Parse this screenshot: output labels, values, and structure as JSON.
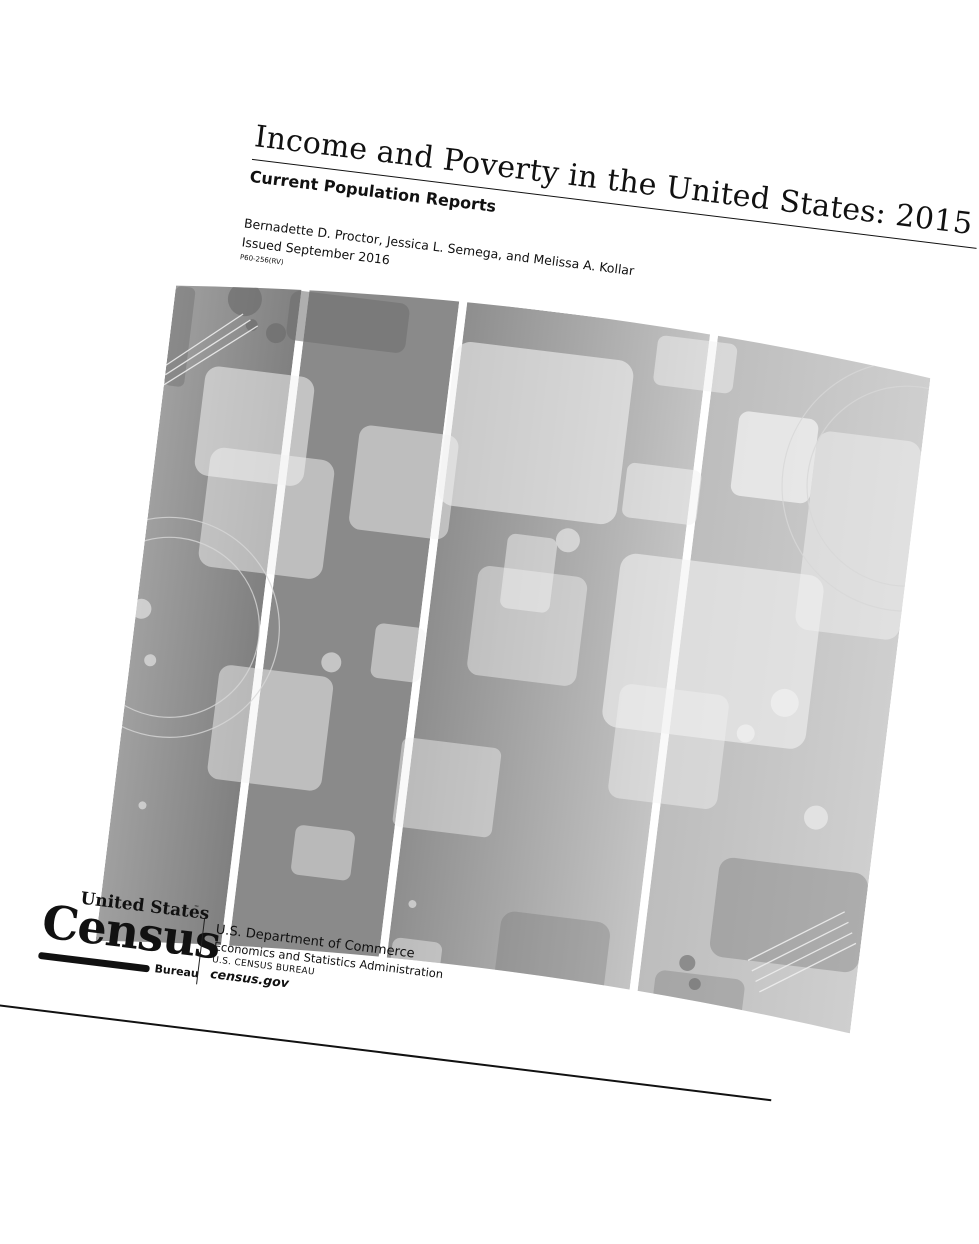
{
  "report": {
    "title": "Income and Poverty in the United States: 2015",
    "subtitle": "Current Population Reports",
    "authors": "Bernadette D. Proctor, Jessica L. Semega, and Melissa A. Kollar",
    "issued": "Issued September 2016",
    "report_id": "P60-256(RV)"
  },
  "logo": {
    "line1": "United States",
    "tm": "™",
    "word": "Census",
    "bureau": "Bureau"
  },
  "agency": {
    "department": "U.S. Department of Commerce",
    "administration": "Economics and Statistics Administration",
    "bureau": "U.S. CENSUS BUREAU",
    "website": "census.gov"
  },
  "colors": {
    "ink": "#111111",
    "panel_dark": "#8c8c8c",
    "panel_light": "#c6c6c6",
    "square_light": "#e6e6e6"
  }
}
